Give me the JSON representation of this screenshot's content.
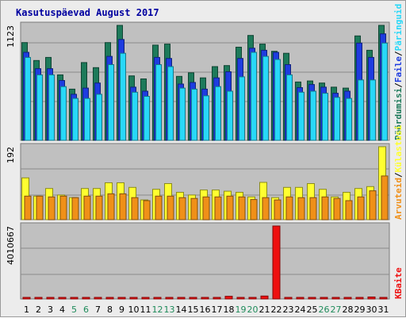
{
  "chart_data": {
    "type": "bar",
    "title": "Kasutuspäevad August 2017",
    "days": [
      "1",
      "2",
      "3",
      "4",
      "5",
      "6",
      "7",
      "8",
      "9",
      "10",
      "11",
      "12",
      "13",
      "14",
      "15",
      "16",
      "17",
      "18",
      "19",
      "20",
      "21",
      "22",
      "23",
      "24",
      "25",
      "26",
      "27",
      "28",
      "29",
      "30",
      "31"
    ],
    "weekend_days": [
      "5",
      "6",
      "12",
      "13",
      "19",
      "20",
      "26",
      "27"
    ],
    "colors": {
      "weekday_label": "#000000",
      "weekend_label": "#1e8b5a",
      "hits": "#1d7a5a",
      "files": "#1e3ce0",
      "pages": "#28d8f8",
      "visits": "#ffff30",
      "sites": "#f09018",
      "kbytes": "#ee1010"
    },
    "panels": [
      {
        "id": "top",
        "ymax_label": "1123",
        "ymax": 1123,
        "series": [
          {
            "name": "Pöördumisi",
            "key": "hits",
            "values": [
              955,
              780,
              810,
              640,
              500,
              760,
              710,
              955,
              1123,
              630,
              600,
              930,
              940,
              625,
              660,
              610,
              720,
              730,
              910,
              1025,
              940,
              870,
              850,
              570,
              580,
              560,
              520,
              510,
              1020,
              880,
              1123
            ]
          },
          {
            "name": "Faile",
            "key": "files",
            "values": [
              860,
              700,
              700,
              585,
              450,
              510,
              560,
              820,
              985,
              520,
              480,
              810,
              800,
              550,
              565,
              500,
              610,
              670,
              800,
              900,
              880,
              860,
              740,
              515,
              545,
              520,
              460,
              480,
              950,
              810,
              1040
            ]
          },
          {
            "name": "Päringuid",
            "key": "pages",
            "values": [
              810,
              640,
              640,
              525,
              410,
              410,
              450,
              740,
              850,
              470,
              430,
              740,
              720,
              510,
              500,
              435,
              525,
              480,
              620,
              860,
              820,
              790,
              640,
              470,
              480,
              460,
              420,
              410,
              590,
              590,
              950
            ]
          }
        ]
      },
      {
        "id": "middle",
        "ymax_label": "192",
        "ymax": 192,
        "series": [
          {
            "name": "Külastusi",
            "key": "visits",
            "values": [
              110,
              62,
              82,
              65,
              58,
              82,
              82,
              97,
              97,
              85,
              52,
              80,
              95,
              72,
              65,
              78,
              78,
              75,
              72,
              60,
              98,
              58,
              85,
              85,
              95,
              80,
              60,
              72,
              82,
              87,
              192
            ]
          },
          {
            "name": "Arvuteid",
            "key": "sites",
            "values": [
              62,
              62,
              60,
              62,
              58,
              62,
              62,
              68,
              68,
              58,
              50,
              62,
              62,
              58,
              56,
              60,
              60,
              62,
              60,
              53,
              58,
              52,
              60,
              58,
              58,
              60,
              56,
              50,
              60,
              76,
              115
            ]
          }
        ]
      },
      {
        "id": "bottom",
        "ymax_label": "4010667",
        "ymax": 4010667,
        "series": [
          {
            "name": "KBaite",
            "key": "kbytes",
            "values": [
              25000,
              20000,
              30000,
              50000,
              30000,
              55000,
              35000,
              60000,
              60000,
              40000,
              25000,
              30000,
              30000,
              55000,
              60000,
              35000,
              30000,
              150000,
              30000,
              25000,
              160000,
              4010667,
              40000,
              30000,
              25000,
              25000,
              25000,
              40000,
              55000,
              110000,
              40000
            ]
          }
        ]
      }
    ],
    "side_labels": {
      "top": [
        {
          "text": "Pöördumisi",
          "key": "hits"
        },
        {
          "text": "Faile",
          "key": "files"
        },
        {
          "text": "Päringuid",
          "key": "pages"
        }
      ],
      "middle": [
        {
          "text": "Arvuteid",
          "key": "sites"
        },
        {
          "text": "Külastusi",
          "key": "visits"
        }
      ],
      "bottom": [
        {
          "text": "KBaite",
          "key": "kbytes"
        }
      ]
    }
  }
}
